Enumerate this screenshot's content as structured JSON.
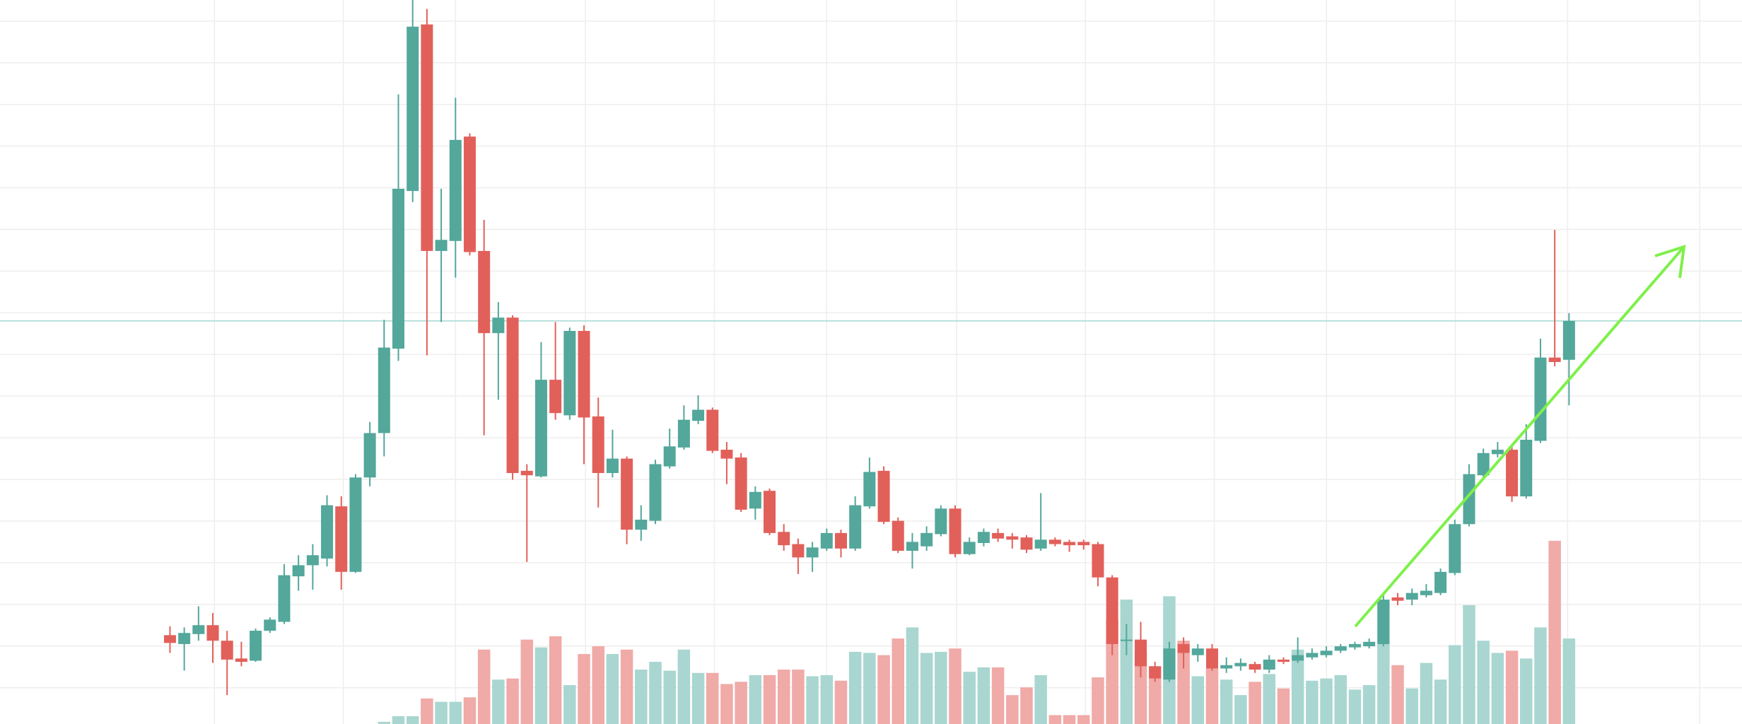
{
  "chart_data": {
    "type": "candlestick",
    "open": [
      80,
      72,
      81,
      89,
      75,
      59,
      57,
      84,
      92,
      133,
      143,
      149,
      196,
      137,
      222,
      262,
      338,
      480,
      630,
      426,
      435,
      529,
      426,
      352,
      366,
      228,
      223,
      310,
      278,
      354,
      277,
      226,
      239,
      175,
      183,
      232,
      249,
      273,
      283,
      247,
      240,
      194,
      210,
      173,
      162,
      150,
      158,
      172,
      158,
      196,
      228,
      183,
      156,
      160,
      171,
      194,
      153,
      163,
      172,
      169,
      168,
      158,
      166,
      164,
      164,
      162,
      132,
      75,
      76,
      52,
      40,
      72,
      62,
      68,
      50,
      52,
      54,
      49,
      58,
      57,
      60,
      62,
      66,
      69,
      70,
      72,
      114,
      112,
      116,
      118,
      136,
      180,
      224,
      243,
      247,
      205,
      255,
      330,
      328
    ],
    "high": [
      88,
      87,
      106,
      100,
      84,
      74,
      86,
      96,
      144,
      152,
      162,
      206,
      205,
      225,
      272,
      364,
      567,
      652,
      644,
      482,
      564,
      532,
      454,
      380,
      368,
      234,
      344,
      362,
      357,
      359,
      294,
      265,
      241,
      197,
      238,
      266,
      287,
      296,
      285,
      254,
      244,
      214,
      212,
      180,
      167,
      164,
      176,
      175,
      205,
      240,
      232,
      186,
      172,
      178,
      197,
      197,
      168,
      176,
      176,
      172,
      170,
      208,
      168,
      166,
      166,
      164,
      134,
      90,
      92,
      56,
      74,
      78,
      72,
      72,
      60,
      59,
      56,
      62,
      60,
      78,
      68,
      70,
      72,
      74,
      77,
      117,
      118,
      122,
      126,
      140,
      184,
      234,
      248,
      254,
      250,
      270,
      347,
      445,
      370
    ],
    "low": [
      64,
      48,
      75,
      55,
      26,
      52,
      56,
      82,
      90,
      120,
      121,
      142,
      121,
      136,
      214,
      241,
      327,
      470,
      332,
      362,
      402,
      422,
      260,
      292,
      220,
      146,
      222,
      274,
      274,
      234,
      195,
      222,
      162,
      165,
      180,
      230,
      247,
      270,
      244,
      216,
      191,
      184,
      170,
      156,
      135,
      137,
      156,
      150,
      156,
      194,
      180,
      154,
      140,
      156,
      169,
      150,
      152,
      160,
      164,
      158,
      154,
      156,
      160,
      155,
      157,
      124,
      62,
      62,
      42,
      38,
      38,
      50,
      56,
      48,
      46,
      48,
      46,
      46,
      54,
      55,
      58,
      60,
      64,
      67,
      68,
      70,
      107,
      107,
      114,
      116,
      134,
      178,
      222,
      240,
      200,
      203,
      253,
      322,
      287
    ],
    "close": [
      73,
      82,
      89,
      75,
      58,
      56,
      84,
      94,
      134,
      143,
      152,
      197,
      137,
      222,
      262,
      339,
      482,
      628,
      426,
      436,
      526,
      425,
      352,
      366,
      226,
      224,
      310,
      280,
      354,
      276,
      226,
      239,
      175,
      184,
      234,
      250,
      274,
      283,
      246,
      239,
      193,
      209,
      172,
      161,
      150,
      159,
      172,
      158,
      197,
      227,
      182,
      156,
      164,
      172,
      194,
      153,
      164,
      173,
      167,
      166,
      157,
      166,
      162,
      161,
      161,
      132,
      72,
      76,
      52,
      41,
      68,
      64,
      68,
      50,
      53,
      55,
      49,
      58,
      56,
      62,
      64,
      66,
      70,
      72,
      74,
      112,
      111,
      118,
      120,
      137,
      180,
      225,
      244,
      247,
      205,
      256,
      330,
      326,
      363
    ],
    "volume": [
      null,
      null,
      null,
      null,
      null,
      null,
      null,
      null,
      null,
      null,
      null,
      null,
      null,
      null,
      null,
      2,
      7,
      7,
      23,
      20,
      20,
      24,
      67,
      40,
      41,
      76,
      69,
      79,
      35,
      63,
      70,
      63,
      67,
      49,
      56,
      48,
      67,
      46,
      46,
      36,
      38,
      44,
      44,
      49,
      49,
      43,
      44,
      39,
      65,
      64,
      62,
      77,
      87,
      64,
      65,
      68,
      47,
      51,
      51,
      26,
      33,
      44,
      8,
      8,
      8,
      42,
      94,
      112,
      66,
      52,
      115,
      75,
      43,
      50,
      40,
      26,
      38,
      45,
      32,
      67,
      39,
      41,
      44,
      31,
      35,
      112,
      53,
      32,
      55,
      40,
      71,
      107,
      75,
      64,
      66,
      59,
      87,
      165,
      77
    ],
    "up_color": "#53a79b",
    "down_color": "#e2605a",
    "volume_up_color": "#a9d6d0",
    "volume_down_color": "#f0aaa7",
    "ylim": [
      0,
      652
    ],
    "grid": true
  }
}
